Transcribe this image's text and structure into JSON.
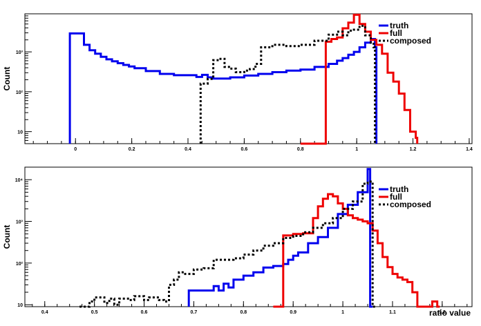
{
  "chart_data": [
    {
      "type": "line",
      "ylabel": "Count",
      "xlabel": "",
      "xlim": [
        -0.18,
        1.41
      ],
      "ylim": [
        5,
        9000
      ],
      "yscale": "log",
      "xticks": [
        "0",
        "0.2",
        "0.4",
        "0.6",
        "0.8",
        "1",
        "1.2",
        "1.4"
      ],
      "xtick_values": [
        0,
        0.2,
        0.4,
        0.6,
        0.8,
        1.0,
        1.2,
        1.4
      ],
      "yticks": [
        "10",
        "10²",
        "10³"
      ],
      "ytick_values": [
        10,
        100,
        1000
      ],
      "legend_position": "top-right",
      "series": [
        {
          "name": "truth",
          "color": "#0000ee",
          "style": "solid",
          "x": [
            -0.02,
            0.03,
            0.05,
            0.07,
            0.09,
            0.11,
            0.13,
            0.15,
            0.17,
            0.19,
            0.21,
            0.25,
            0.3,
            0.35,
            0.4,
            0.43,
            0.45,
            0.47,
            0.49,
            0.55,
            0.6,
            0.65,
            0.7,
            0.75,
            0.8,
            0.85,
            0.9,
            0.93,
            0.95,
            0.97,
            0.99,
            1.01,
            1.03,
            1.05,
            1.065
          ],
          "y": [
            2900,
            1500,
            1100,
            900,
            750,
            650,
            580,
            520,
            470,
            430,
            390,
            330,
            280,
            260,
            260,
            235,
            265,
            230,
            215,
            230,
            255,
            280,
            310,
            340,
            360,
            420,
            500,
            600,
            700,
            850,
            1000,
            1300,
            1700,
            2100,
            1300
          ]
        },
        {
          "name": "full",
          "color": "#ee0000",
          "style": "solid",
          "x": [
            0.8,
            0.83,
            0.85,
            0.87,
            0.89,
            0.91,
            0.93,
            0.95,
            0.97,
            0.99,
            1.01,
            1.03,
            1.05,
            1.07,
            1.09,
            1.11,
            1.13,
            1.15,
            1.17,
            1.19,
            1.21
          ],
          "y": [
            4,
            5,
            4,
            4,
            1800,
            2100,
            2300,
            3900,
            5400,
            8500,
            5000,
            3200,
            2000,
            1500,
            900,
            300,
            180,
            90,
            35,
            10,
            7
          ]
        },
        {
          "name": "composed",
          "color": "#000000",
          "style": "dotted",
          "x": [
            0.445,
            0.47,
            0.49,
            0.51,
            0.53,
            0.55,
            0.57,
            0.6,
            0.62,
            0.64,
            0.66,
            0.7,
            0.75,
            0.8,
            0.85,
            0.9,
            0.93,
            0.95,
            0.97,
            0.99,
            1.01,
            1.03,
            1.05,
            1.06
          ],
          "y": [
            160,
            210,
            620,
            670,
            420,
            380,
            310,
            340,
            370,
            500,
            1300,
            1500,
            1400,
            1500,
            1900,
            2700,
            3200,
            2600,
            3400,
            3600,
            4500,
            2600,
            1700,
            1300
          ]
        }
      ]
    },
    {
      "type": "line",
      "ylabel": "Count",
      "xlabel": "ratio value",
      "xlim": [
        0.36,
        1.26
      ],
      "ylim": [
        9,
        20000
      ],
      "yscale": "log",
      "xticks": [
        "0.4",
        "0.5",
        "0.6",
        "0.7",
        "0.8",
        "0.9",
        "1",
        "1.1",
        "1.2"
      ],
      "xtick_values": [
        0.4,
        0.5,
        0.6,
        0.7,
        0.8,
        0.9,
        1.0,
        1.1,
        1.2
      ],
      "yticks": [
        "10",
        "10²",
        "10³",
        "10⁴"
      ],
      "ytick_values": [
        10,
        100,
        1000,
        10000
      ],
      "legend_position": "top-right",
      "series": [
        {
          "name": "truth",
          "color": "#0000ee",
          "style": "solid",
          "x": [
            0.69,
            0.73,
            0.74,
            0.75,
            0.76,
            0.77,
            0.78,
            0.8,
            0.82,
            0.84,
            0.86,
            0.88,
            0.89,
            0.9,
            0.91,
            0.93,
            0.95,
            0.97,
            0.99,
            1.01,
            1.03,
            1.05,
            1.055
          ],
          "y": [
            22,
            22,
            28,
            22,
            32,
            26,
            40,
            50,
            60,
            78,
            85,
            95,
            120,
            150,
            180,
            300,
            420,
            700,
            1500,
            2500,
            5000,
            18000,
            8
          ]
        },
        {
          "name": "full",
          "color": "#ee0000",
          "style": "solid",
          "x": [
            0.86,
            0.87,
            0.88,
            0.9,
            0.92,
            0.94,
            0.95,
            0.96,
            0.97,
            0.98,
            0.99,
            1.0,
            1.01,
            1.02,
            1.03,
            1.04,
            1.05,
            1.06,
            1.07,
            1.08,
            1.09,
            1.1,
            1.11,
            1.12,
            1.13,
            1.14,
            1.15,
            1.18,
            1.19
          ],
          "y": [
            8,
            6,
            460,
            500,
            520,
            1200,
            2300,
            3500,
            4500,
            4000,
            2700,
            2000,
            1400,
            1200,
            1100,
            1000,
            900,
            600,
            300,
            140,
            80,
            55,
            45,
            40,
            35,
            20,
            8,
            12,
            9
          ]
        },
        {
          "name": "composed",
          "color": "#000000",
          "style": "dotted",
          "x": [
            0.47,
            0.49,
            0.5,
            0.52,
            0.53,
            0.54,
            0.55,
            0.57,
            0.58,
            0.6,
            0.61,
            0.63,
            0.64,
            0.65,
            0.66,
            0.67,
            0.68,
            0.7,
            0.72,
            0.74,
            0.76,
            0.78,
            0.8,
            0.82,
            0.84,
            0.86,
            0.88,
            0.9,
            0.92,
            0.94,
            0.96,
            0.98,
            1.0,
            1.02,
            1.04,
            1.05,
            1.06
          ],
          "y": [
            9,
            12,
            15,
            11,
            14,
            10,
            14,
            13,
            16,
            13,
            15,
            13,
            12,
            30,
            40,
            60,
            55,
            70,
            75,
            120,
            120,
            130,
            160,
            200,
            260,
            300,
            400,
            450,
            550,
            700,
            900,
            1200,
            2000,
            3000,
            8000,
            9000,
            8
          ]
        }
      ]
    }
  ]
}
